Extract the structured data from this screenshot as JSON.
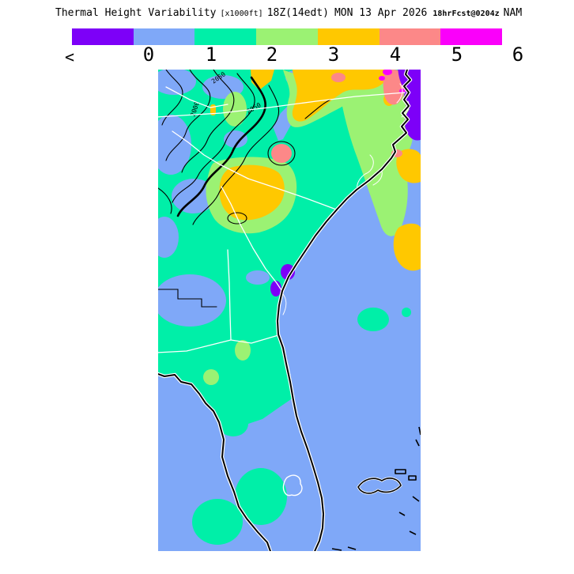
{
  "title": {
    "product": "Thermal Height Variability",
    "units": "[x1000ft]",
    "valid_time": "18Z(14edt)",
    "valid_date": "MON 13 Apr 2026",
    "forecast_info": "18hrFcst@0204z",
    "model": "NAM"
  },
  "legend": {
    "tick_labels": [
      "<",
      "0",
      "1",
      "2",
      "3",
      "4",
      "5",
      "6"
    ],
    "bands": [
      {
        "name": "violet",
        "color": "#7D00F8",
        "range": "< 0"
      },
      {
        "name": "light-blue",
        "color": "#7FA8F8",
        "range": "0-1"
      },
      {
        "name": "spring-green",
        "color": "#00EFA8",
        "range": "1-2"
      },
      {
        "name": "light-green",
        "color": "#9BF273",
        "range": "2-3"
      },
      {
        "name": "gold",
        "color": "#FFC800",
        "range": "3-4"
      },
      {
        "name": "salmon",
        "color": "#FC8888",
        "range": "4-5"
      },
      {
        "name": "magenta",
        "color": "#FA00FA",
        "range": "5-6"
      }
    ]
  },
  "map": {
    "description": "Filled-contour forecast of thermal height variability (x1000 ft) over the southeastern United States: Appalachians, Carolinas, Georgia, Florida and the adjacent western Atlantic, Gulf of Mexico, Cuba and the Bahamas.",
    "contour_labels": [
      "2050",
      "2000",
      "2050"
    ],
    "line_colors": {
      "terrain_contours": "#000000",
      "state_borders": "#FFFFFF",
      "coastline": "#000000",
      "coastline_halo": "#FFFFFF"
    },
    "background": "#FFFFFF"
  }
}
